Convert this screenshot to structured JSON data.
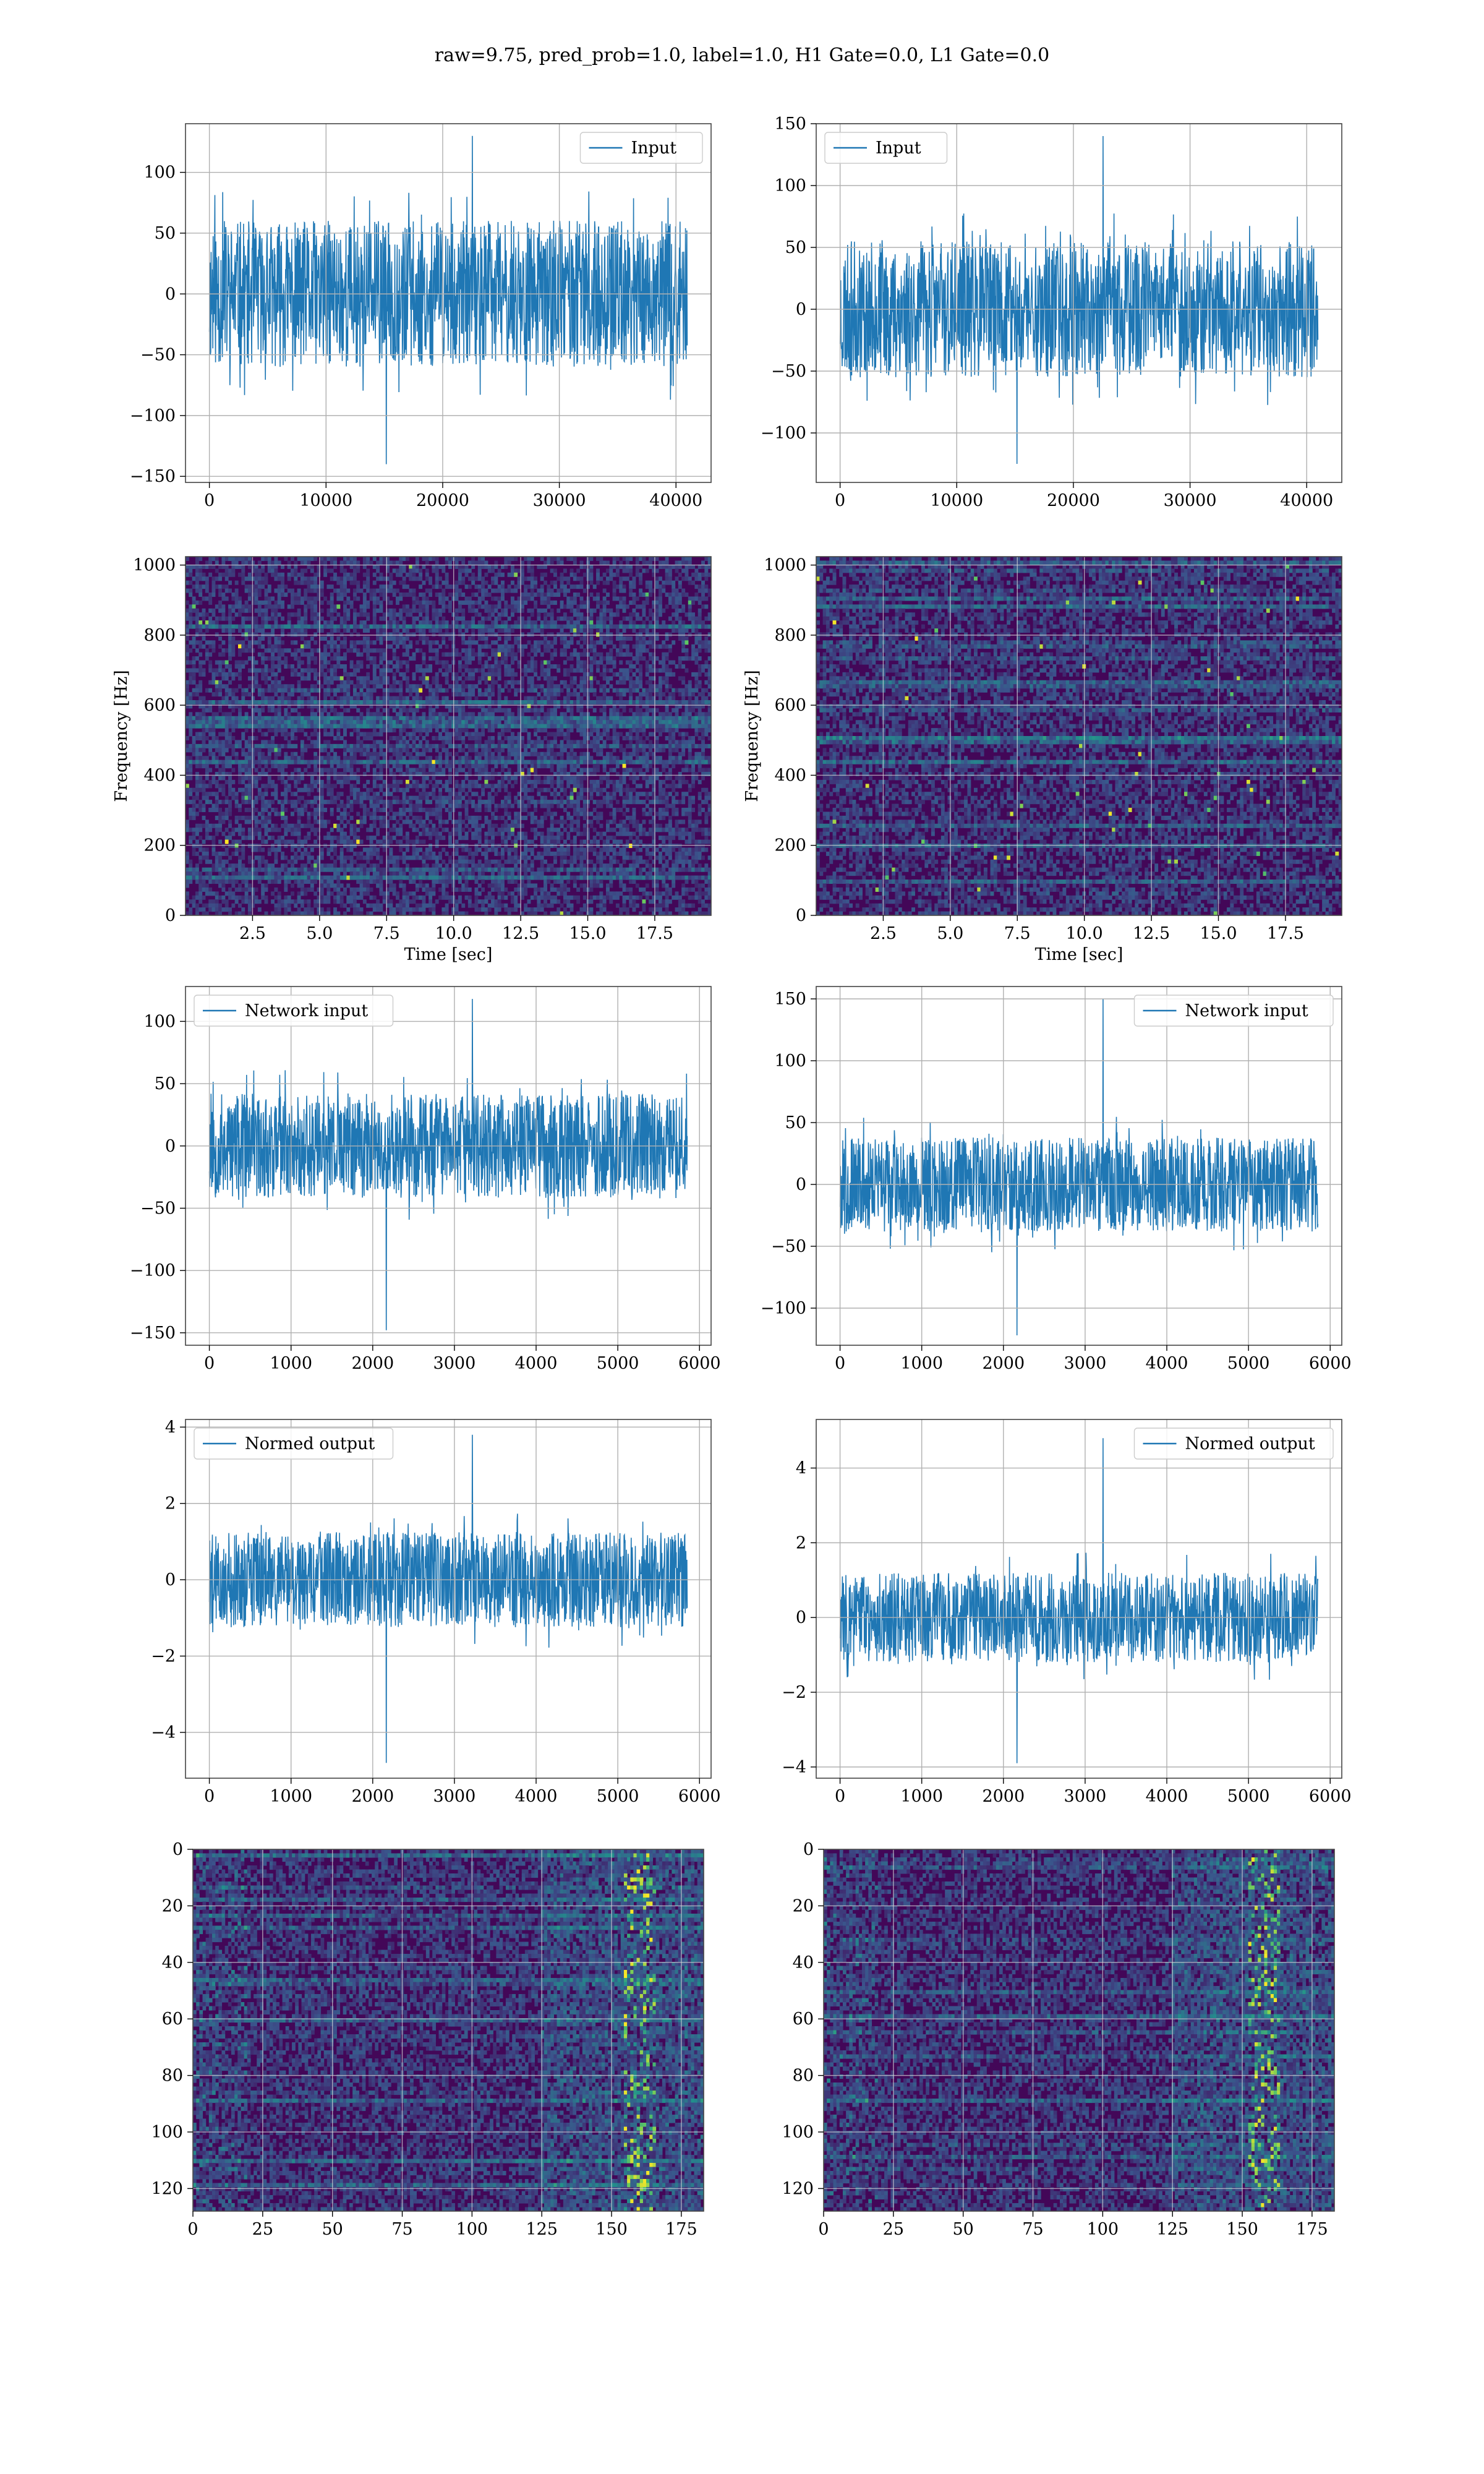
{
  "figure": {
    "suptitle": "raw=9.75, pred_prob=1.0, label=1.0, H1 Gate=0.0, L1 Gate=0.0",
    "line_color": "#1f77b4",
    "grid_color": "#b0b0b0",
    "colormap": "viridis"
  },
  "chart_data": [
    {
      "type": "line",
      "id": "input-left",
      "series": [
        {
          "name": "Input",
          "color": "#1f77b4",
          "x_range": [
            0,
            40960
          ],
          "y_spread": 60,
          "y_extremes": [
            -140,
            130
          ],
          "seed": 11
        }
      ],
      "xlim": [
        -2048,
        43008
      ],
      "ylim": [
        -155,
        140
      ],
      "xticks": [
        0,
        10000,
        20000,
        30000,
        40000
      ],
      "yticks": [
        -150,
        -100,
        -50,
        0,
        50,
        100
      ],
      "legend_loc": "upper right",
      "grid": true
    },
    {
      "type": "line",
      "id": "input-right",
      "series": [
        {
          "name": "Input",
          "color": "#1f77b4",
          "x_range": [
            0,
            40960
          ],
          "y_spread": 55,
          "y_extremes": [
            -125,
            140
          ],
          "seed": 23
        }
      ],
      "xlim": [
        -2048,
        43008
      ],
      "ylim": [
        -140,
        150
      ],
      "xticks": [
        0,
        10000,
        20000,
        30000,
        40000
      ],
      "yticks": [
        -100,
        -50,
        0,
        50,
        100,
        150
      ],
      "legend_loc": "upper left",
      "grid": true
    },
    {
      "type": "heatmap",
      "id": "spectrogram-left",
      "xlabel": "Time [sec]",
      "ylabel": "Frequency [Hz]",
      "xlim": [
        0,
        19.6
      ],
      "ylim": [
        0,
        1024
      ],
      "xticks": [
        2.5,
        5.0,
        7.5,
        10.0,
        12.5,
        15.0,
        17.5
      ],
      "xtick_labels": [
        "2.5",
        "5.0",
        "7.5",
        "10.0",
        "12.5",
        "15.0",
        "17.5"
      ],
      "yticks": [
        0,
        200,
        400,
        600,
        800,
        1000
      ],
      "colormap": "viridis",
      "band_hz": 560,
      "seed": 37,
      "grid": true
    },
    {
      "type": "heatmap",
      "id": "spectrogram-right",
      "xlabel": "Time [sec]",
      "ylabel": "Frequency [Hz]",
      "xlim": [
        0,
        19.6
      ],
      "ylim": [
        0,
        1024
      ],
      "xticks": [
        2.5,
        5.0,
        7.5,
        10.0,
        12.5,
        15.0,
        17.5
      ],
      "xtick_labels": [
        "2.5",
        "5.0",
        "7.5",
        "10.0",
        "12.5",
        "15.0",
        "17.5"
      ],
      "yticks": [
        0,
        200,
        400,
        600,
        800,
        1000
      ],
      "colormap": "viridis",
      "band_hz": 500,
      "seed": 41,
      "grid": true
    },
    {
      "type": "line",
      "id": "network-input-left",
      "series": [
        {
          "name": "Network input",
          "color": "#1f77b4",
          "x_range": [
            0,
            5850
          ],
          "y_spread": 42,
          "y_extremes": [
            -148,
            118
          ],
          "seed": 53
        }
      ],
      "xlim": [
        -292,
        6142
      ],
      "ylim": [
        -160,
        128
      ],
      "xticks": [
        0,
        1000,
        2000,
        3000,
        4000,
        5000,
        6000
      ],
      "yticks": [
        -150,
        -100,
        -50,
        0,
        50,
        100
      ],
      "legend_loc": "upper left",
      "grid": true
    },
    {
      "type": "line",
      "id": "network-input-right",
      "series": [
        {
          "name": "Network input",
          "color": "#1f77b4",
          "x_range": [
            0,
            5850
          ],
          "y_spread": 38,
          "y_extremes": [
            -122,
            150
          ],
          "seed": 67
        }
      ],
      "xlim": [
        -292,
        6142
      ],
      "ylim": [
        -130,
        160
      ],
      "xticks": [
        0,
        1000,
        2000,
        3000,
        4000,
        5000,
        6000
      ],
      "yticks": [
        -100,
        -50,
        0,
        50,
        100,
        150
      ],
      "legend_loc": "upper right",
      "grid": true
    },
    {
      "type": "line",
      "id": "normed-output-left",
      "series": [
        {
          "name": "Normed output",
          "color": "#1f77b4",
          "x_range": [
            0,
            5850
          ],
          "y_spread": 1.25,
          "y_extremes": [
            -4.8,
            3.8
          ],
          "seed": 79
        }
      ],
      "xlim": [
        -292,
        6142
      ],
      "ylim": [
        -5.2,
        4.2
      ],
      "xticks": [
        0,
        1000,
        2000,
        3000,
        4000,
        5000,
        6000
      ],
      "yticks": [
        -4,
        -2,
        0,
        2,
        4
      ],
      "legend_loc": "upper left",
      "grid": true
    },
    {
      "type": "line",
      "id": "normed-output-right",
      "series": [
        {
          "name": "Normed output",
          "color": "#1f77b4",
          "x_range": [
            0,
            5850
          ],
          "y_spread": 1.2,
          "y_extremes": [
            -3.9,
            4.8
          ],
          "seed": 83
        }
      ],
      "xlim": [
        -292,
        6142
      ],
      "ylim": [
        -4.3,
        5.3
      ],
      "xticks": [
        0,
        1000,
        2000,
        3000,
        4000,
        5000,
        6000
      ],
      "yticks": [
        -4,
        -2,
        0,
        2,
        4
      ],
      "legend_loc": "upper right",
      "grid": true
    },
    {
      "type": "heatmap",
      "id": "feature-map-left",
      "rows": 128,
      "cols": 183,
      "xlim": [
        0,
        183
      ],
      "ylim": [
        128,
        0
      ],
      "xticks": [
        0,
        25,
        50,
        75,
        100,
        125,
        150,
        175
      ],
      "yticks": [
        0,
        20,
        40,
        60,
        80,
        100,
        120
      ],
      "colormap": "viridis",
      "event_col": 160,
      "seed": 97,
      "grid": true
    },
    {
      "type": "heatmap",
      "id": "feature-map-right",
      "rows": 128,
      "cols": 183,
      "xlim": [
        0,
        183
      ],
      "ylim": [
        128,
        0
      ],
      "xticks": [
        0,
        25,
        50,
        75,
        100,
        125,
        150,
        175
      ],
      "yticks": [
        0,
        20,
        40,
        60,
        80,
        100,
        120
      ],
      "colormap": "viridis",
      "event_col": 158,
      "seed": 101,
      "grid": true
    }
  ]
}
